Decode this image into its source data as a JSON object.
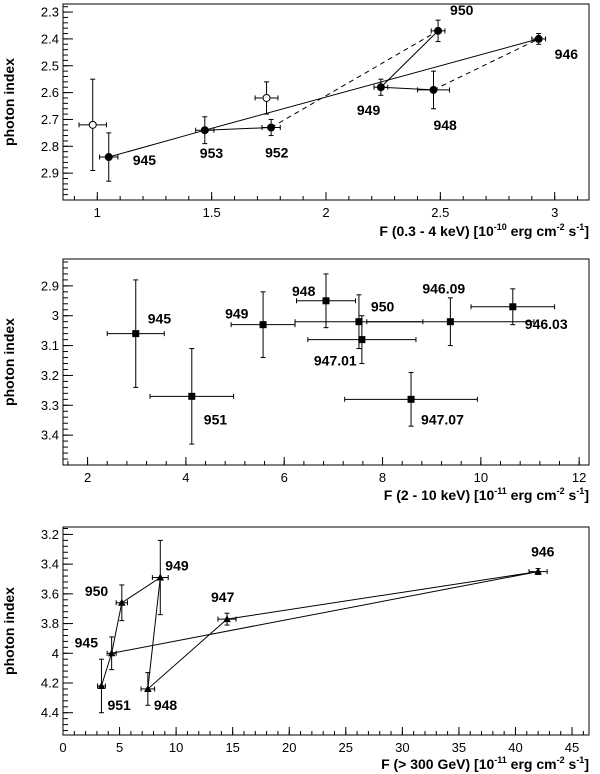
{
  "chart_data": [
    {
      "type": "scatter",
      "xlabel_parts": [
        "F (0.3 - 4 keV) [10",
        "-10",
        " erg cm",
        "-2",
        " s",
        "-1",
        "]"
      ],
      "ylabel": "photon index",
      "xlim": [
        0.85,
        3.15
      ],
      "ylim": [
        3.0,
        2.27
      ],
      "x_ticks": [
        1,
        1.5,
        2,
        2.5,
        3
      ],
      "x_tick_labels": [
        "1",
        "1.5",
        "2",
        "2.5",
        "3"
      ],
      "y_ticks": [
        2.3,
        2.4,
        2.5,
        2.6,
        2.7,
        2.8,
        2.9
      ],
      "y_tick_labels": [
        "2.3",
        "2.4",
        "2.5",
        "2.6",
        "2.7",
        "2.8",
        "2.9"
      ],
      "marker": "circle",
      "points": [
        {
          "label": "945",
          "x": 1.05,
          "y": 2.84,
          "xerr": 0.04,
          "yerr": 0.09,
          "filled": true
        },
        {
          "label": "",
          "x": 0.98,
          "y": 2.72,
          "xerr": 0.06,
          "yerr": 0.17,
          "filled": false
        },
        {
          "label": "953",
          "x": 1.47,
          "y": 2.74,
          "xerr": 0.04,
          "yerr": 0.05,
          "filled": true
        },
        {
          "label": "",
          "x": 1.74,
          "y": 2.62,
          "xerr": 0.05,
          "yerr": 0.06,
          "filled": false
        },
        {
          "label": "952",
          "x": 1.76,
          "y": 2.73,
          "xerr": 0.04,
          "yerr": 0.03,
          "filled": true
        },
        {
          "label": "949",
          "x": 2.24,
          "y": 2.58,
          "xerr": 0.03,
          "yerr": 0.03,
          "filled": true
        },
        {
          "label": "948",
          "x": 2.47,
          "y": 2.59,
          "xerr": 0.07,
          "yerr": 0.07,
          "filled": true
        },
        {
          "label": "950",
          "x": 2.49,
          "y": 2.37,
          "xerr": 0.03,
          "yerr": 0.04,
          "filled": true
        },
        {
          "label": "946",
          "x": 2.93,
          "y": 2.4,
          "xerr": 0.03,
          "yerr": 0.02,
          "filled": true
        }
      ],
      "solid_lines": [
        [
          [
            1.05,
            2.84
          ],
          [
            1.47,
            2.74
          ],
          [
            1.76,
            2.73
          ]
        ],
        [
          [
            1.47,
            2.74
          ],
          [
            2.93,
            2.4
          ]
        ],
        [
          [
            2.24,
            2.58
          ],
          [
            2.49,
            2.37
          ]
        ],
        [
          [
            2.24,
            2.58
          ],
          [
            2.47,
            2.59
          ]
        ]
      ],
      "dashed_lines": [
        [
          [
            1.76,
            2.73
          ],
          [
            2.49,
            2.37
          ]
        ],
        [
          [
            2.47,
            2.59
          ],
          [
            2.93,
            2.4
          ]
        ]
      ]
    },
    {
      "type": "scatter",
      "xlabel_parts": [
        "F (2 - 10 keV) [10",
        "-11",
        " erg cm",
        "-2",
        " s",
        "-1",
        "]"
      ],
      "ylabel": "photon index",
      "xlim": [
        1.5,
        12.2
      ],
      "ylim": [
        3.5,
        2.81
      ],
      "x_ticks": [
        2,
        4,
        6,
        8,
        10,
        12
      ],
      "x_tick_labels": [
        "2",
        "4",
        "6",
        "8",
        "10",
        "12"
      ],
      "y_ticks": [
        2.9,
        3.0,
        3.1,
        3.2,
        3.3,
        3.4
      ],
      "y_tick_labels": [
        "2.9",
        "3",
        "3.1",
        "3.2",
        "3.3",
        "3.4"
      ],
      "marker": "square",
      "points": [
        {
          "label": "945",
          "x": 2.98,
          "y": 3.06,
          "xerr": 0.58,
          "yerr": 0.18,
          "filled": true
        },
        {
          "label": "951",
          "x": 4.12,
          "y": 3.27,
          "xerr": 0.85,
          "yerr": 0.16,
          "filled": true
        },
        {
          "label": "949",
          "x": 5.57,
          "y": 3.03,
          "xerr": 0.65,
          "yerr": 0.11,
          "filled": true
        },
        {
          "label": "948",
          "x": 6.85,
          "y": 2.95,
          "xerr": 0.6,
          "yerr": 0.09,
          "filled": true
        },
        {
          "label": "950",
          "x": 7.52,
          "y": 3.02,
          "xerr": 1.3,
          "yerr": 0.09,
          "filled": true
        },
        {
          "label": "947.01",
          "x": 7.58,
          "y": 3.08,
          "xerr": 1.1,
          "yerr": 0.08,
          "filled": true
        },
        {
          "label": "947.07",
          "x": 8.58,
          "y": 3.28,
          "xerr": 1.35,
          "yerr": 0.09,
          "filled": true
        },
        {
          "label": "946.09",
          "x": 9.38,
          "y": 3.02,
          "xerr": 1.7,
          "yerr": 0.08,
          "filled": true
        },
        {
          "label": "946.03",
          "x": 10.65,
          "y": 2.97,
          "xerr": 0.85,
          "yerr": 0.06,
          "filled": true
        }
      ],
      "solid_lines": [],
      "dashed_lines": []
    },
    {
      "type": "scatter",
      "xlabel_parts": [
        "F (> 300 GeV) [10",
        "-11",
        " erg cm",
        "-2",
        " s",
        "-1",
        "]"
      ],
      "ylabel": "photon index",
      "xlim": [
        0,
        46.5
      ],
      "ylim": [
        4.55,
        3.15
      ],
      "x_ticks": [
        0,
        5,
        10,
        15,
        20,
        25,
        30,
        35,
        40,
        45
      ],
      "x_tick_labels": [
        "0",
        "5",
        "10",
        "15",
        "20",
        "25",
        "30",
        "35",
        "40",
        "45"
      ],
      "y_ticks": [
        3.2,
        3.4,
        3.6,
        3.8,
        4.0,
        4.2,
        4.4
      ],
      "y_tick_labels": [
        "3.2",
        "3.4",
        "3.6",
        "3.8",
        "4",
        "4.2",
        "4.4"
      ],
      "marker": "triangle",
      "points": [
        {
          "label": "945",
          "x": 4.3,
          "y": 4.0,
          "xerr": 0.4,
          "yerr": 0.11,
          "filled": true
        },
        {
          "label": "951",
          "x": 3.4,
          "y": 4.22,
          "xerr": 0.35,
          "yerr": 0.18,
          "filled": true
        },
        {
          "label": "950",
          "x": 5.2,
          "y": 3.66,
          "xerr": 0.5,
          "yerr": 0.12,
          "filled": true
        },
        {
          "label": "949",
          "x": 8.6,
          "y": 3.49,
          "xerr": 0.7,
          "yerr": 0.25,
          "filled": true
        },
        {
          "label": "948",
          "x": 7.5,
          "y": 4.24,
          "xerr": 0.6,
          "yerr": 0.11,
          "filled": true
        },
        {
          "label": "947",
          "x": 14.5,
          "y": 3.77,
          "xerr": 0.8,
          "yerr": 0.04,
          "filled": true
        },
        {
          "label": "946",
          "x": 42.0,
          "y": 3.45,
          "xerr": 0.8,
          "yerr": 0.02,
          "filled": true
        }
      ],
      "solid_lines": [
        [
          [
            3.4,
            4.22
          ],
          [
            4.3,
            4.0
          ],
          [
            5.2,
            3.66
          ],
          [
            8.6,
            3.49
          ],
          [
            7.5,
            4.24
          ],
          [
            14.5,
            3.77
          ],
          [
            42.0,
            3.45
          ],
          [
            4.3,
            4.0
          ]
        ]
      ],
      "dashed_lines": []
    }
  ]
}
